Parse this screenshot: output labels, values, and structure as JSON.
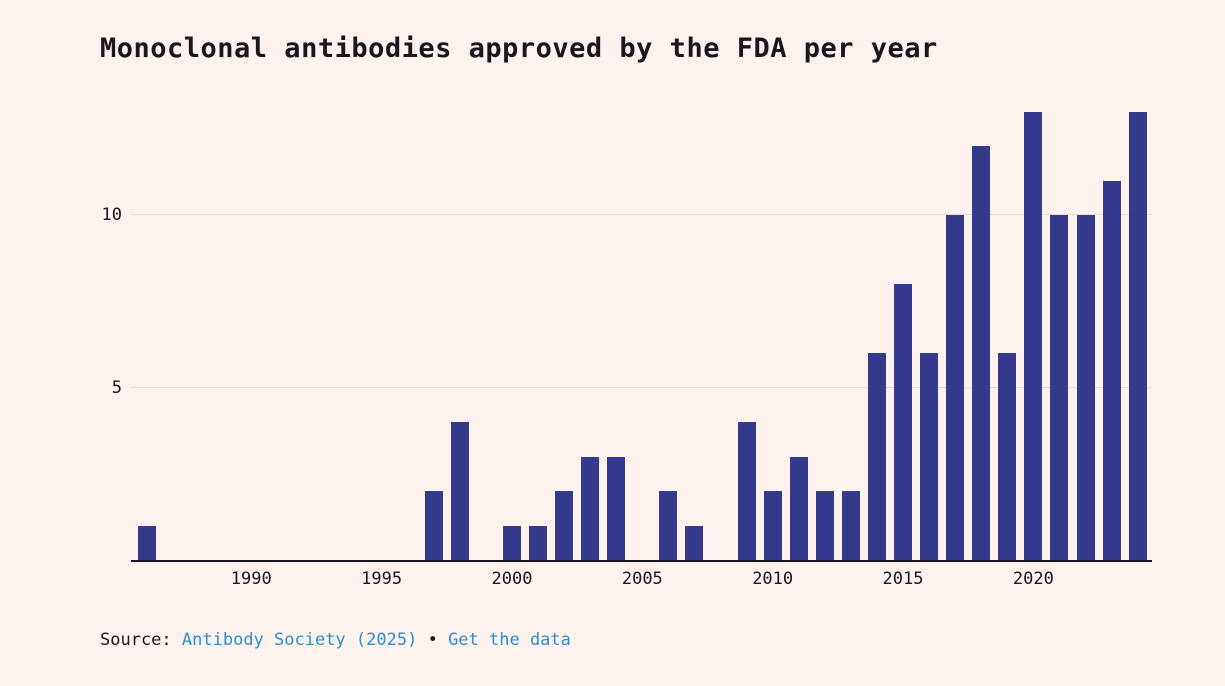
{
  "title": "Monoclonal antibodies approved by the FDA per year",
  "colors": {
    "background": "#fdf2ee",
    "bar": "#363a8c",
    "text": "#17171f",
    "gridline": "#e5dad6",
    "axis_line": "#17171f",
    "link": "#2e8ece"
  },
  "chart_data": {
    "type": "bar",
    "title": "Monoclonal antibodies approved by the FDA per year",
    "xlabel": "",
    "ylabel": "",
    "categories": [
      1986,
      1987,
      1988,
      1989,
      1990,
      1991,
      1992,
      1993,
      1994,
      1995,
      1996,
      1997,
      1998,
      1999,
      2000,
      2001,
      2002,
      2003,
      2004,
      2005,
      2006,
      2007,
      2008,
      2009,
      2010,
      2011,
      2012,
      2013,
      2014,
      2015,
      2016,
      2017,
      2018,
      2019,
      2020,
      2021,
      2022,
      2023,
      2024
    ],
    "values": [
      1,
      0,
      0,
      0,
      0,
      0,
      0,
      0,
      0,
      0,
      0,
      2,
      4,
      0,
      1,
      1,
      2,
      3,
      3,
      0,
      2,
      1,
      0,
      4,
      2,
      3,
      2,
      2,
      6,
      8,
      6,
      10,
      12,
      6,
      13,
      10,
      10,
      11,
      13
    ],
    "ylim": [
      0,
      13
    ],
    "yticks": [
      5,
      10
    ],
    "xticks": [
      1990,
      1995,
      2000,
      2005,
      2010,
      2015,
      2020
    ],
    "grid": "horizontal-only",
    "legend": "none",
    "bar_color": "#363a8c"
  },
  "source": {
    "label": "Source:",
    "link1": "Antibody Society (2025)",
    "separator": "•",
    "link2": "Get the data"
  }
}
